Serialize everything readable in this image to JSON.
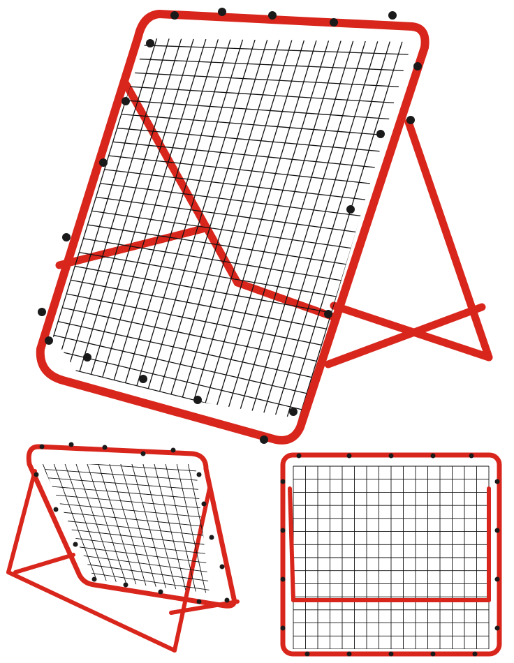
{
  "product": {
    "name": "rebounder-net",
    "views": [
      "large-front-angled-view",
      "small-side-angled-view",
      "small-rear-view"
    ]
  },
  "colors": {
    "background": "#ffffff",
    "frame": "#d9261c",
    "frame_highlight": "#f0594a",
    "frame_shadow": "#9c150e",
    "net": "#111111",
    "clip": "#1a1a1a"
  },
  "net_grid": {
    "large_columns": 22,
    "large_rows": 24,
    "small_left_columns": 14,
    "small_left_rows": 15,
    "small_right_columns": 16,
    "small_right_rows": 14
  }
}
